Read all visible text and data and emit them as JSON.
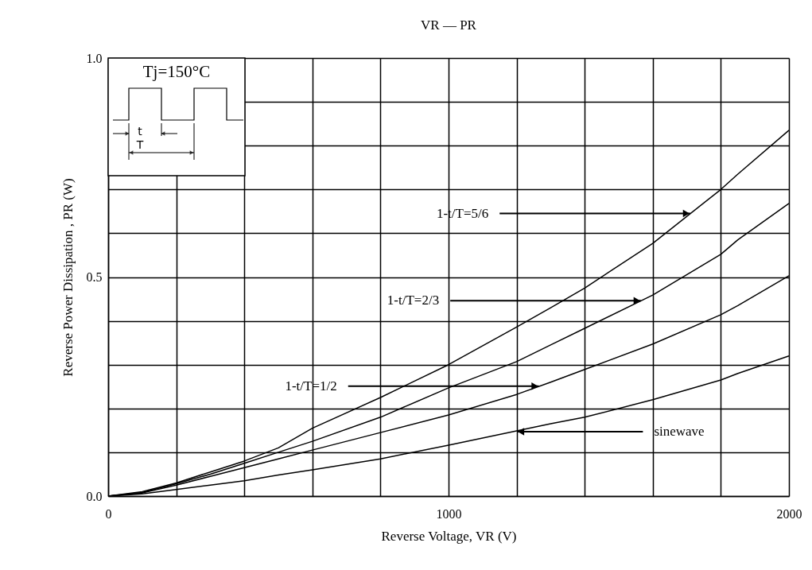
{
  "chart_data": {
    "type": "line",
    "title": "VR — PR",
    "xlabel": "Reverse Voltage, VR (V)",
    "ylabel": "Reverse Power Dissipation , PR (W)",
    "x": [
      0,
      100,
      200,
      300,
      400,
      500,
      600,
      800,
      1000,
      1200,
      1300,
      1400,
      1600,
      1800,
      1850,
      2000
    ],
    "series": [
      {
        "color": "#000000",
        "values": [
          0,
          0.01,
          0.03,
          0.055,
          0.08,
          0.11,
          0.155,
          0.225,
          0.3,
          0.386,
          0.43,
          0.475,
          0.577,
          0.7,
          0.735,
          0.835
        ]
      },
      {
        "color": "#000000",
        "values": [
          0,
          0.008,
          0.028,
          0.05,
          0.075,
          0.1,
          0.125,
          0.18,
          0.247,
          0.307,
          0.345,
          0.383,
          0.459,
          0.552,
          0.585,
          0.668
        ]
      },
      {
        "color": "#000000",
        "values": [
          0,
          0.007,
          0.025,
          0.045,
          0.065,
          0.085,
          0.105,
          0.145,
          0.185,
          0.232,
          0.26,
          0.289,
          0.347,
          0.414,
          0.435,
          0.503
        ]
      },
      {
        "color": "#000000",
        "values": [
          0,
          0.005,
          0.015,
          0.025,
          0.035,
          0.048,
          0.06,
          0.085,
          0.116,
          0.149,
          0.165,
          0.18,
          0.22,
          0.265,
          0.28,
          0.32
        ]
      }
    ],
    "xlim": [
      0,
      2000
    ],
    "ylim": [
      0,
      1.0
    ],
    "xticks": [
      0,
      {
        "value": 200,
        "label": null
      },
      {
        "value": 400,
        "label": null
      },
      {
        "value": 600,
        "label": null
      },
      {
        "value": 800,
        "label": null
      },
      1000,
      {
        "value": 1200,
        "label": null
      },
      {
        "value": 1400,
        "label": null
      },
      {
        "value": 1600,
        "label": null
      },
      {
        "value": 1800,
        "label": null
      },
      2000
    ],
    "yticks": [
      {
        "value": 0,
        "label": "0.0"
      },
      {
        "value": 0.1,
        "label": null
      },
      {
        "value": 0.2,
        "label": null
      },
      {
        "value": 0.3,
        "label": null
      },
      {
        "value": 0.4,
        "label": null
      },
      {
        "value": 0.5,
        "label": "0.5"
      },
      {
        "value": 0.6,
        "label": null
      },
      {
        "value": 0.7,
        "label": null
      },
      {
        "value": 0.8,
        "label": null
      },
      {
        "value": 0.9,
        "label": null
      },
      {
        "value": 1.0,
        "label": "1.0"
      }
    ],
    "grid": true,
    "line_style": "solid",
    "marker": "none",
    "annotations": [
      "Tj=150°C",
      "t",
      "T",
      {
        "text": "1-t/T=5/6",
        "x": 1710,
        "y": 0.645
      },
      {
        "text": "1-t/T=2/3",
        "x": 1565,
        "y": 0.446
      },
      {
        "text": "1-t/T=1/2",
        "x": 1265,
        "y": 0.251
      },
      {
        "text": "sinewave",
        "x": 1201,
        "y": 0.147
      }
    ]
  }
}
